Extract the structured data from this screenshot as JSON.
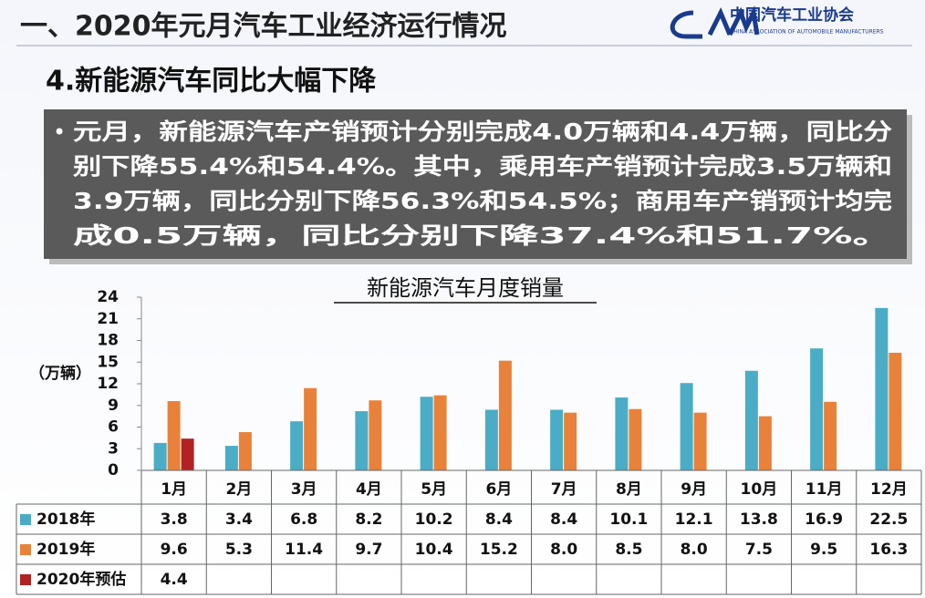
{
  "header": {
    "title": "一、2020年元月汽车工业经济运行情况",
    "logo_cn": "中国汽车工业协会",
    "logo_en": "CHINA ASSOCIATION OF AUTOMOBILE MANUFACTURERS"
  },
  "subtitle": "4.新能源汽车同比大幅下降",
  "bullet": [
    "元月，新能源汽车产销预计分别完成4.0万辆和4.4万辆，同比分",
    "别下降55.4%和54.4%。其中，乘用车产销预计完成3.5万辆和",
    "3.9万辆，同比分别下降56.3%和54.5%；商用车产销预计均完",
    "成0.5万辆，同比分别下降37.4%和51.7%。"
  ],
  "chart_data": {
    "type": "bar",
    "title": "新能源汽车月度销量",
    "y_label": "（万辆）",
    "categories": [
      "1月",
      "2月",
      "3月",
      "4月",
      "5月",
      "6月",
      "7月",
      "8月",
      "9月",
      "10月",
      "11月",
      "12月"
    ],
    "series": [
      {
        "name": "2018年",
        "color": "#4bacc6",
        "values": [
          3.8,
          3.4,
          6.8,
          8.2,
          10.2,
          8.4,
          8.4,
          10.1,
          12.1,
          13.8,
          16.9,
          22.5
        ]
      },
      {
        "name": "2019年",
        "color": "#e8823a",
        "values": [
          9.6,
          5.3,
          11.4,
          9.7,
          10.4,
          15.2,
          8.0,
          8.5,
          8.0,
          7.5,
          9.5,
          16.3
        ],
        "value_labels": [
          "9.6",
          "5.3",
          "11.4",
          "9.7",
          "10.4",
          "15.2",
          "8.0",
          "8.5",
          "8.0",
          "7.5",
          "9.5",
          "16.3"
        ]
      },
      {
        "name": "2020年预估",
        "color": "#b22222",
        "values": [
          4.4,
          null,
          null,
          null,
          null,
          null,
          null,
          null,
          null,
          null,
          null,
          null
        ]
      }
    ],
    "ylim": [
      0,
      24
    ],
    "yticks": [
      0,
      3,
      6,
      9,
      12,
      15,
      18,
      21,
      24
    ]
  }
}
